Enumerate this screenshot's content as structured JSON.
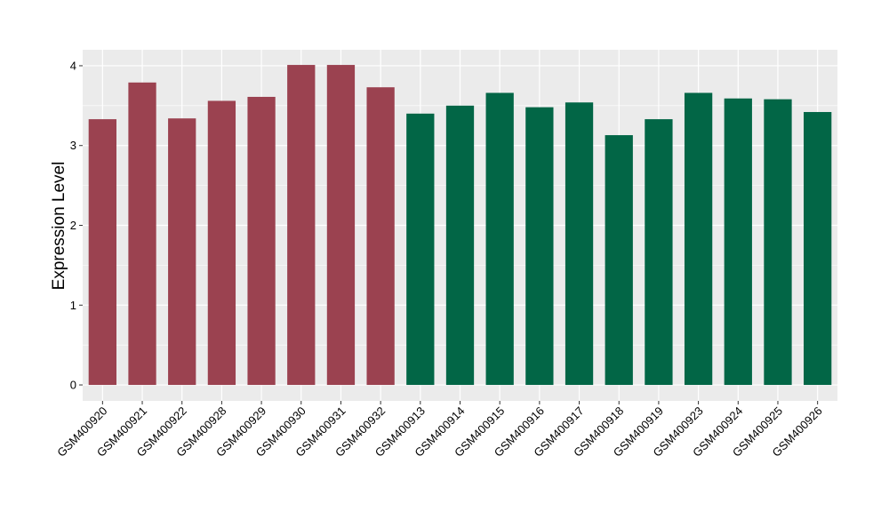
{
  "chart_data": {
    "type": "bar",
    "ylabel": "Expression Level",
    "xlabel": "",
    "ylim": [
      -0.2,
      4.2
    ],
    "yticks": [
      0,
      1,
      2,
      3,
      4
    ],
    "grid": true,
    "categories": [
      "GSM400920",
      "GSM400921",
      "GSM400922",
      "GSM400928",
      "GSM400929",
      "GSM400930",
      "GSM400931",
      "GSM400932",
      "GSM400913",
      "GSM400914",
      "GSM400915",
      "GSM400916",
      "GSM400917",
      "GSM400918",
      "GSM400919",
      "GSM400923",
      "GSM400924",
      "GSM400925",
      "GSM400926"
    ],
    "values": [
      3.33,
      3.79,
      3.34,
      3.56,
      3.61,
      4.01,
      4.01,
      3.73,
      3.4,
      3.5,
      3.66,
      3.48,
      3.54,
      3.13,
      3.33,
      3.66,
      3.59,
      3.58,
      3.42
    ],
    "bar_colors": [
      "#9b4250",
      "#9b4250",
      "#9b4250",
      "#9b4250",
      "#9b4250",
      "#9b4250",
      "#9b4250",
      "#9b4250",
      "#026646",
      "#026646",
      "#026646",
      "#026646",
      "#026646",
      "#026646",
      "#026646",
      "#026646",
      "#026646",
      "#026646",
      "#026646"
    ],
    "panel_background": "#ebebeb",
    "gridline_color": "#ffffff"
  }
}
